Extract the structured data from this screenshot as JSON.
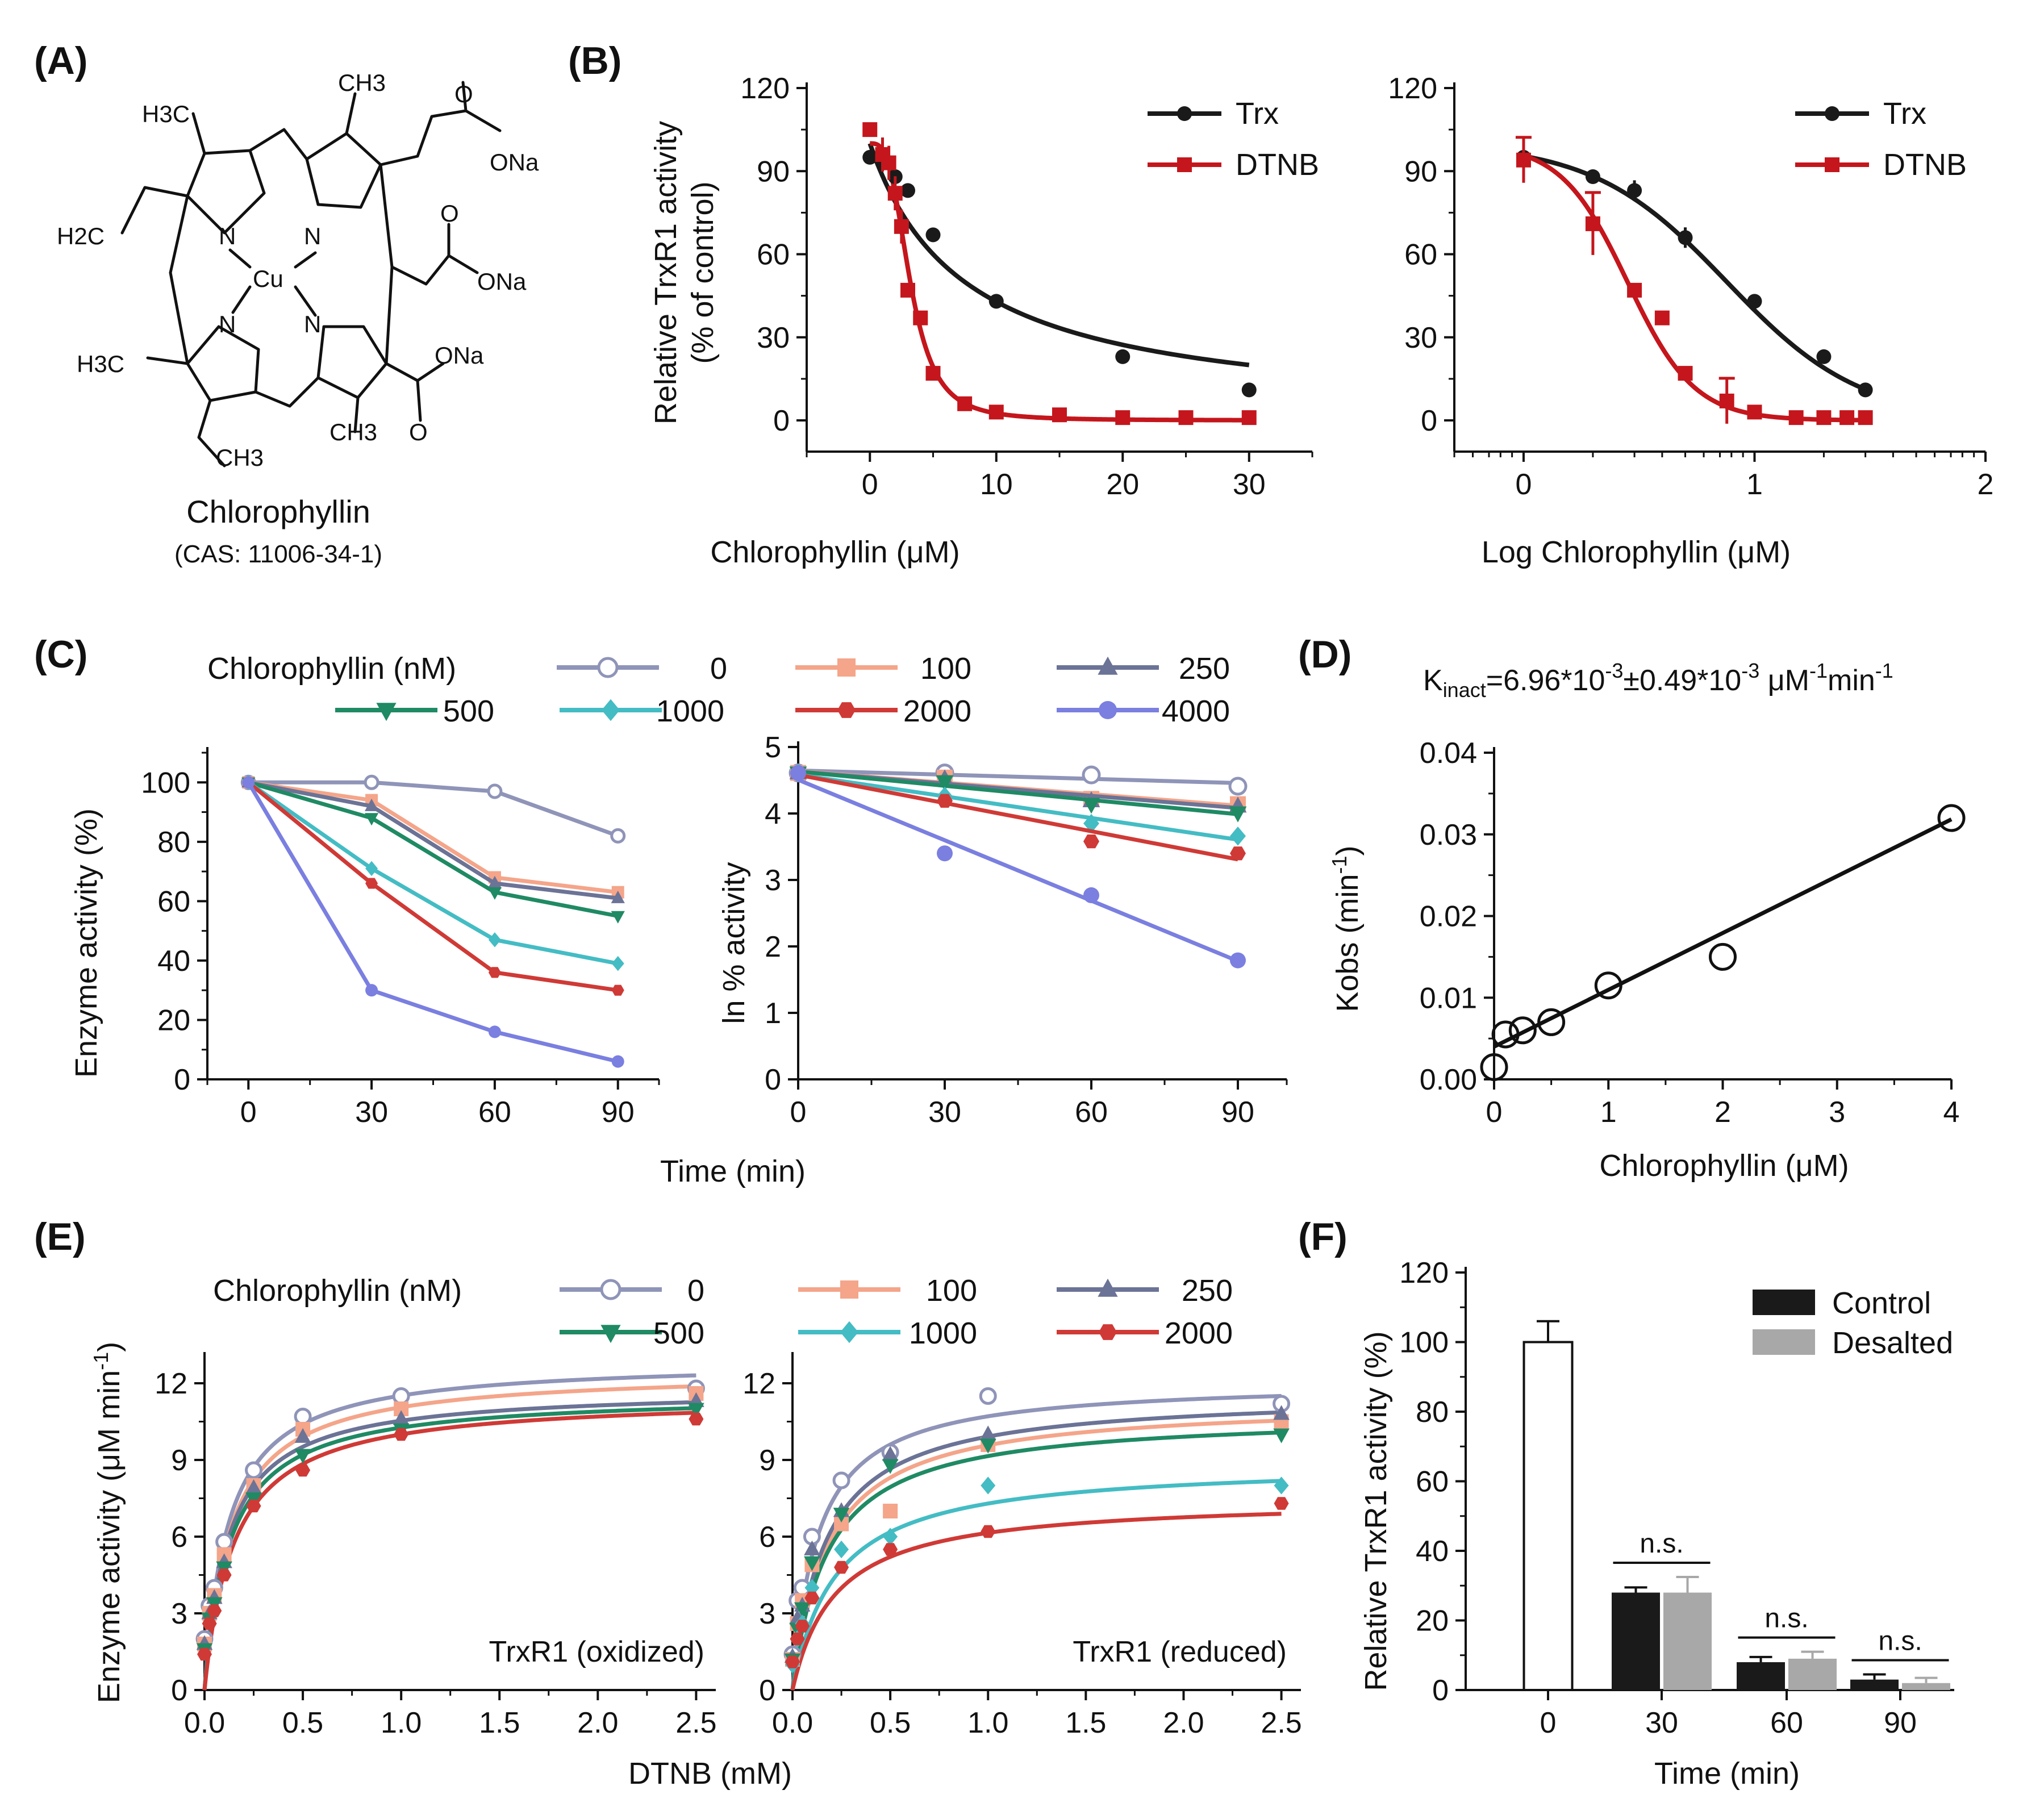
{
  "figure_labels": {
    "A": "(A)",
    "B": "(B)",
    "C": "(C)",
    "D": "(D)",
    "E": "(E)",
    "F": "(F)"
  },
  "molecule": {
    "name": "Chlorophyllin",
    "cas": "(CAS: 11006-34-1)",
    "atoms": [
      "H3C",
      "CH3",
      "H2C",
      "N",
      "N",
      "N",
      "N",
      "Cu",
      "O",
      "ONa",
      "O",
      "ONa",
      "O",
      "ONa",
      "H3C",
      "CH3",
      "CH3"
    ]
  },
  "colors": {
    "trx": "#1a1a1a",
    "dtnb": "#c4161c",
    "nm0": "#8f94b8",
    "nm100": "#f4a58a",
    "nm250": "#6b7396",
    "nm500": "#1f8a64",
    "nm1000": "#44bcc4",
    "nm2000": "#cf3a36",
    "nm4000": "#7a7fe0",
    "legend_num": "#1a2a8c",
    "control": "#1a1a1a",
    "desalted": "#a8a8a8"
  },
  "chart_data": [
    {
      "panel": "B-left",
      "type": "line",
      "xlabel": "Chlorophyllin (μM)",
      "ylabel": "Relative TrxR1 activity",
      "ylabel2": "(% of control)",
      "xlim": [
        -5,
        35
      ],
      "ylim": [
        0,
        120
      ],
      "xticks": [
        "0",
        "10",
        "20",
        "30"
      ],
      "yticks": [
        "0",
        "30",
        "60",
        "90",
        "120"
      ],
      "series": [
        {
          "name": "Trx",
          "x": [
            0,
            1,
            2,
            3,
            5,
            10,
            20,
            30
          ],
          "y": [
            95,
            93,
            88,
            83,
            67,
            43,
            23,
            11
          ]
        },
        {
          "name": "DTNB",
          "x": [
            0,
            1,
            1.5,
            2,
            2.5,
            3,
            4,
            5,
            7.5,
            10,
            15,
            20,
            25,
            30
          ],
          "y": [
            105,
            96,
            93,
            82,
            70,
            47,
            37,
            17,
            6,
            3,
            2,
            1,
            1,
            1
          ]
        }
      ]
    },
    {
      "panel": "B-right",
      "type": "line",
      "xlabel": "Log Chlorophyllin (μM)",
      "xlim": [
        -0.3,
        2
      ],
      "ylim": [
        0,
        120
      ],
      "xticks": [
        "0",
        "1",
        "2"
      ],
      "yticks": [
        "0",
        "30",
        "60",
        "90",
        "120"
      ],
      "series": [
        {
          "name": "Trx",
          "x": [
            0,
            0.3,
            0.48,
            0.7,
            1.0,
            1.3,
            1.48
          ],
          "y": [
            95,
            88,
            83,
            66,
            43,
            23,
            11
          ]
        },
        {
          "name": "DTNB",
          "x": [
            0,
            0.3,
            0.48,
            0.6,
            0.7,
            0.88,
            1.0,
            1.18,
            1.3,
            1.4,
            1.48
          ],
          "y": [
            94,
            71,
            47,
            37,
            17,
            7,
            3,
            1,
            1,
            1,
            1
          ]
        }
      ]
    },
    {
      "panel": "C-left",
      "type": "line",
      "xlabel": "Time (min)",
      "ylabel": "Enzyme activity (%)",
      "legend_title": "Chlorophyllin (nM)",
      "x": [
        0,
        30,
        60,
        90
      ],
      "xlim": [
        -10,
        100
      ],
      "ylim": [
        0,
        110
      ],
      "xticks": [
        "0",
        "30",
        "60",
        "90"
      ],
      "yticks": [
        "0",
        "20",
        "40",
        "60",
        "80",
        "100"
      ],
      "series": [
        {
          "name": "0",
          "values": [
            100,
            100,
            97,
            82
          ]
        },
        {
          "name": "100",
          "values": [
            100,
            94,
            68,
            63
          ]
        },
        {
          "name": "250",
          "values": [
            100,
            92,
            66,
            61
          ]
        },
        {
          "name": "500",
          "values": [
            100,
            88,
            63,
            55
          ]
        },
        {
          "name": "1000",
          "values": [
            100,
            71,
            47,
            39
          ]
        },
        {
          "name": "2000",
          "values": [
            100,
            66,
            36,
            30
          ]
        },
        {
          "name": "4000",
          "values": [
            100,
            30,
            16,
            6
          ]
        }
      ]
    },
    {
      "panel": "C-right",
      "type": "scatter",
      "ylabel": "ln % activity",
      "x": [
        0,
        30,
        60,
        90
      ],
      "xlim": [
        0,
        100
      ],
      "ylim": [
        0,
        5
      ],
      "xticks": [
        "0",
        "30",
        "60",
        "90"
      ],
      "yticks": [
        "0",
        "1",
        "2",
        "3",
        "4",
        "5"
      ],
      "series": [
        {
          "name": "0",
          "values": [
            4.61,
            4.61,
            4.58,
            4.41
          ]
        },
        {
          "name": "100",
          "values": [
            4.61,
            4.54,
            4.22,
            4.14
          ]
        },
        {
          "name": "250",
          "values": [
            4.61,
            4.52,
            4.19,
            4.11
          ]
        },
        {
          "name": "500",
          "values": [
            4.61,
            4.48,
            4.14,
            4.01
          ]
        },
        {
          "name": "1000",
          "values": [
            4.61,
            4.26,
            3.85,
            3.66
          ]
        },
        {
          "name": "2000",
          "values": [
            4.61,
            4.19,
            3.58,
            3.4
          ]
        },
        {
          "name": "4000",
          "values": [
            4.61,
            3.4,
            2.77,
            1.79
          ]
        }
      ]
    },
    {
      "panel": "D",
      "type": "scatter",
      "title": "K",
      "title_sub": "inact",
      "title_rest": "=6.96*10",
      "title_sup1": "-3",
      "title_mid": "±0.49*10",
      "title_sup2": "-3",
      "title_unit": " μM",
      "title_sup3": "-1",
      "title_end": "min",
      "title_sup4": "-1",
      "xlabel": "Chlorophyllin (μM)",
      "ylabel": "Kobs (min",
      "ylabel_sup": "-1",
      "ylabel_end": ")",
      "xlim": [
        0,
        4
      ],
      "ylim": [
        0,
        0.04
      ],
      "xticks": [
        "0",
        "1",
        "2",
        "3",
        "4"
      ],
      "yticks": [
        "0.00",
        "0.01",
        "0.02",
        "0.03",
        "0.04"
      ],
      "x": [
        0,
        0.1,
        0.25,
        0.5,
        1,
        2,
        4
      ],
      "y": [
        0.0015,
        0.0055,
        0.006,
        0.007,
        0.0115,
        0.015,
        0.032
      ],
      "fit": {
        "slope": 0.00696,
        "intercept": 0.004
      }
    },
    {
      "panel": "E-left",
      "type": "line",
      "ylabel": "Enzyme activity (μM min",
      "ylabel_sup": "-1",
      "ylabel_end": ")",
      "xlabel": "DTNB (mM)",
      "annotation": "TrxR1 (oxidized)",
      "legend_title": "Chlorophyllin (nM)",
      "x": [
        0,
        0.025,
        0.05,
        0.1,
        0.25,
        0.5,
        1.0,
        2.5
      ],
      "xlim": [
        0,
        2.6
      ],
      "ylim": [
        0,
        13
      ],
      "xticks": [
        "0.0",
        "0.5",
        "1.0",
        "1.5",
        "2.0",
        "2.5"
      ],
      "yticks": [
        "0",
        "3",
        "6",
        "9",
        "12"
      ],
      "series": [
        {
          "name": "0",
          "values": [
            2,
            3.3,
            4,
            5.8,
            8.6,
            10.7,
            11.5,
            11.8
          ]
        },
        {
          "name": "100",
          "values": [
            1.8,
            3,
            3.7,
            5.3,
            8,
            10.2,
            11,
            11.6
          ]
        },
        {
          "name": "250",
          "values": [
            1.8,
            3,
            3.6,
            5,
            7.9,
            9.9,
            10.6,
            11.3
          ]
        },
        {
          "name": "500",
          "values": [
            1.6,
            2.8,
            3.4,
            4.8,
            7.5,
            9.2,
            10.2,
            11
          ]
        },
        {
          "name": "2000",
          "values": [
            1.4,
            2.6,
            3.1,
            4.5,
            7.2,
            8.6,
            10,
            10.6
          ]
        }
      ],
      "fits": [
        {
          "name": "0",
          "vmax": 12.9,
          "km": 0.12
        },
        {
          "name": "100",
          "vmax": 12.5,
          "km": 0.13
        },
        {
          "name": "250",
          "vmax": 11.8,
          "km": 0.12
        },
        {
          "name": "500",
          "vmax": 11.6,
          "km": 0.13
        },
        {
          "name": "2000",
          "vmax": 11.5,
          "km": 0.15
        }
      ]
    },
    {
      "panel": "E-right",
      "type": "line",
      "annotation": "TrxR1 (reduced)",
      "x": [
        0,
        0.025,
        0.05,
        0.1,
        0.25,
        0.5,
        1.0,
        2.5
      ],
      "xlim": [
        0,
        2.6
      ],
      "ylim": [
        0,
        13
      ],
      "xticks": [
        "0.0",
        "0.5",
        "1.0",
        "1.5",
        "2.0",
        "2.5"
      ],
      "yticks": [
        "0",
        "3",
        "6",
        "9",
        "12"
      ],
      "series": [
        {
          "name": "0",
          "values": [
            1.4,
            3.5,
            4,
            6,
            8.2,
            9.3,
            11.5,
            11.2
          ]
        },
        {
          "name": "100",
          "values": [
            1.2,
            2.6,
            3.5,
            4.9,
            6.5,
            7,
            9.6,
            10.5
          ]
        },
        {
          "name": "250",
          "values": [
            1.3,
            2.8,
            3.3,
            5.5,
            7,
            9.2,
            10,
            10.8
          ]
        },
        {
          "name": "500",
          "values": [
            1.2,
            2.4,
            3.2,
            5,
            6.9,
            8.8,
            9.6,
            10
          ]
        },
        {
          "name": "1000",
          "values": [
            1,
            2,
            2.6,
            4,
            5.5,
            6,
            8,
            8
          ]
        },
        {
          "name": "2000",
          "values": [
            1.1,
            2,
            2.5,
            3.6,
            4.8,
            5.5,
            6.2,
            7.3
          ]
        }
      ],
      "fits": [
        {
          "name": "0",
          "vmax": 12.1,
          "km": 0.13
        },
        {
          "name": "100",
          "vmax": 11.3,
          "km": 0.18
        },
        {
          "name": "250",
          "vmax": 11.6,
          "km": 0.17
        },
        {
          "name": "500",
          "vmax": 10.8,
          "km": 0.18
        },
        {
          "name": "1000",
          "vmax": 8.9,
          "km": 0.22
        },
        {
          "name": "2000",
          "vmax": 7.5,
          "km": 0.22
        }
      ]
    },
    {
      "panel": "F",
      "type": "bar",
      "xlabel": "Time (min)",
      "ylabel": "Relative TrxR1 activity (%)",
      "categories": [
        "0",
        "30",
        "60",
        "90"
      ],
      "ylim": [
        0,
        120
      ],
      "yticks": [
        "0",
        "20",
        "40",
        "60",
        "80",
        "100",
        "120"
      ],
      "series": [
        {
          "name": "Control",
          "values": [
            100,
            28,
            8,
            3
          ],
          "errors": [
            6,
            1.5,
            1.5,
            1.5
          ]
        },
        {
          "name": "Desalted",
          "values": [
            null,
            28,
            9,
            2
          ],
          "errors": [
            null,
            4.5,
            2,
            1.5
          ]
        }
      ],
      "significance": [
        "n.s.",
        "n.s.",
        "n.s."
      ]
    }
  ]
}
